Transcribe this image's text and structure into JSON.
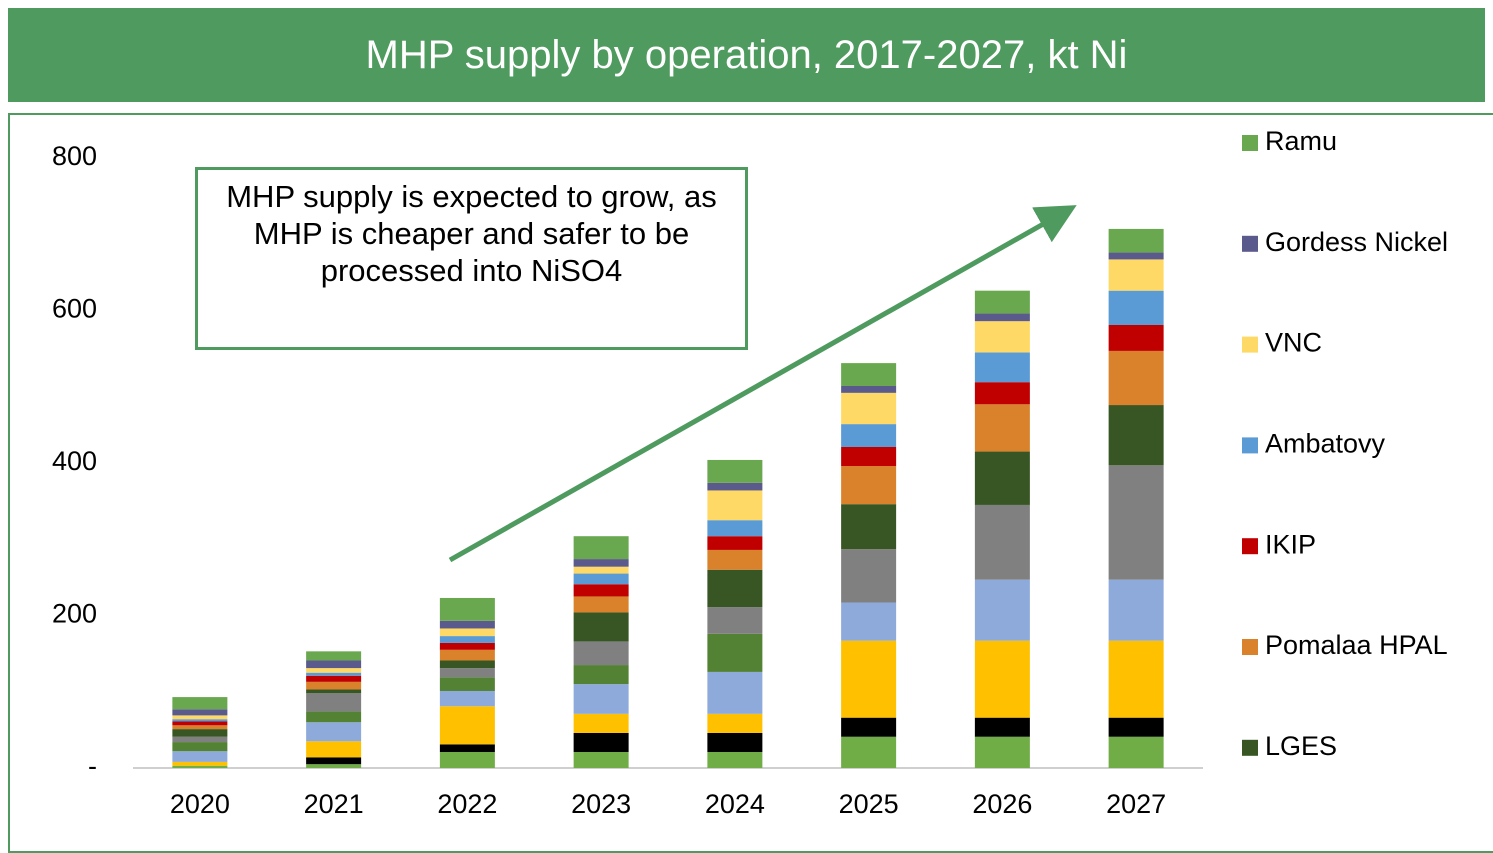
{
  "chart_data": {
    "type": "stacked-bar",
    "title": "MHP supply by operation, 2017-2027, kt Ni",
    "annotation": "MHP supply is expected to grow, as MHP is cheaper and safer to be processed into NiSO4",
    "categories": [
      "2020",
      "2021",
      "2022",
      "2023",
      "2024",
      "2025",
      "2026",
      "2027"
    ],
    "ylim": [
      0,
      800
    ],
    "yticks": [
      {
        "value": 0,
        "label": "-"
      },
      200,
      400,
      600,
      800
    ],
    "grid": false,
    "series": [
      {
        "color": "#70ad47",
        "values": [
          3,
          5,
          21,
          21,
          21,
          41,
          41,
          41
        ]
      },
      {
        "color": "#000000",
        "values": [
          0,
          9,
          10,
          25,
          25,
          25,
          25,
          25
        ]
      },
      {
        "color": "#ffc000",
        "values": [
          5,
          21,
          50,
          25,
          25,
          101,
          101,
          101
        ]
      },
      {
        "color": "#8eaadb",
        "values": [
          14,
          25,
          20,
          39,
          55,
          50,
          80,
          80
        ]
      },
      {
        "color": "#548235",
        "values": [
          12,
          14,
          18,
          25,
          50,
          0,
          0,
          0
        ]
      },
      {
        "color": "#808080",
        "values": [
          7,
          24,
          12,
          31,
          35,
          70,
          98,
          150
        ]
      },
      {
        "name": "LGES",
        "color": "#375623",
        "values": [
          10,
          5,
          10,
          38,
          49,
          59,
          70,
          79
        ]
      },
      {
        "name": "Pomalaa HPAL",
        "color": "#d9822b",
        "values": [
          5,
          10,
          14,
          21,
          26,
          50,
          62,
          71
        ]
      },
      {
        "name": "IKIP",
        "color": "#c00000",
        "values": [
          5,
          8,
          9,
          16,
          18,
          25,
          29,
          34
        ]
      },
      {
        "name": "Ambatovy",
        "color": "#5b9bd5",
        "values": [
          3,
          4,
          9,
          14,
          21,
          30,
          39,
          45
        ]
      },
      {
        "name": "VNC",
        "color": "#ffd966",
        "values": [
          5,
          6,
          10,
          9,
          39,
          41,
          41,
          41
        ]
      },
      {
        "name": "Gordess Nickel",
        "color": "#5a5a8c",
        "values": [
          8,
          10,
          10,
          10,
          10,
          9,
          10,
          9
        ]
      },
      {
        "name": "Ramu",
        "color": "#6aa84f",
        "values": [
          16,
          12,
          30,
          30,
          30,
          30,
          30,
          31
        ]
      }
    ]
  }
}
